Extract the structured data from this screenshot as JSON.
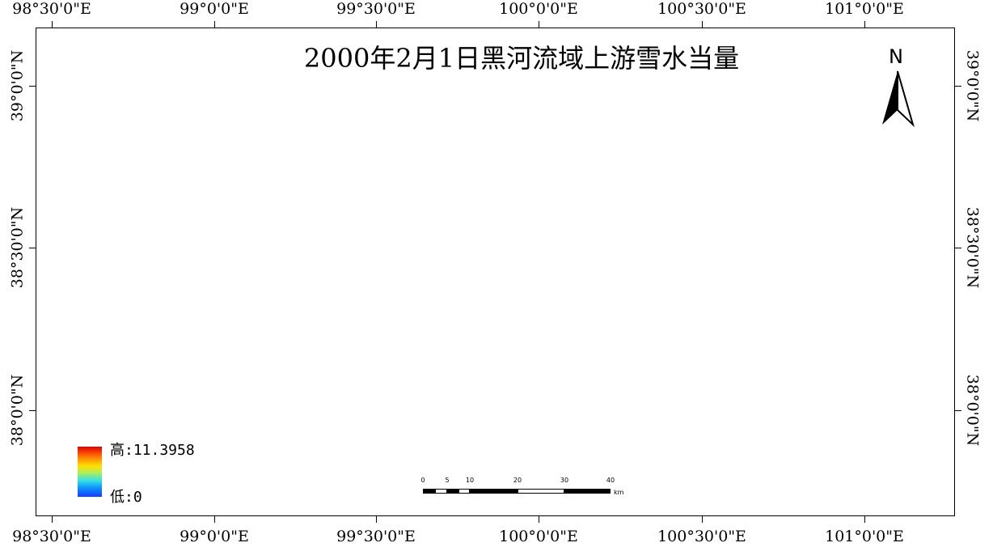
{
  "map": {
    "title": "2000年2月1日黑河流域上游雪水当量",
    "north_label": "N",
    "longitude_labels": [
      "98°30'0\"E",
      "99°0'0\"E",
      "99°30'0\"E",
      "100°0'0\"E",
      "100°30'0\"E",
      "101°0'0\"E"
    ],
    "latitude_labels": [
      "39°0'0\"N",
      "38°30'0\"N",
      "38°0'0\"N"
    ]
  },
  "legend": {
    "high_label": "高:11.3958",
    "low_label": "低:0",
    "colors": [
      "#e00000",
      "#ff7a00",
      "#ffe000",
      "#a8f060",
      "#30e0f0",
      "#1090ff",
      "#1a3cff"
    ]
  },
  "scale_bar": {
    "labels": [
      "0",
      "5",
      "10",
      "20",
      "30",
      "40"
    ],
    "unit": "km"
  }
}
